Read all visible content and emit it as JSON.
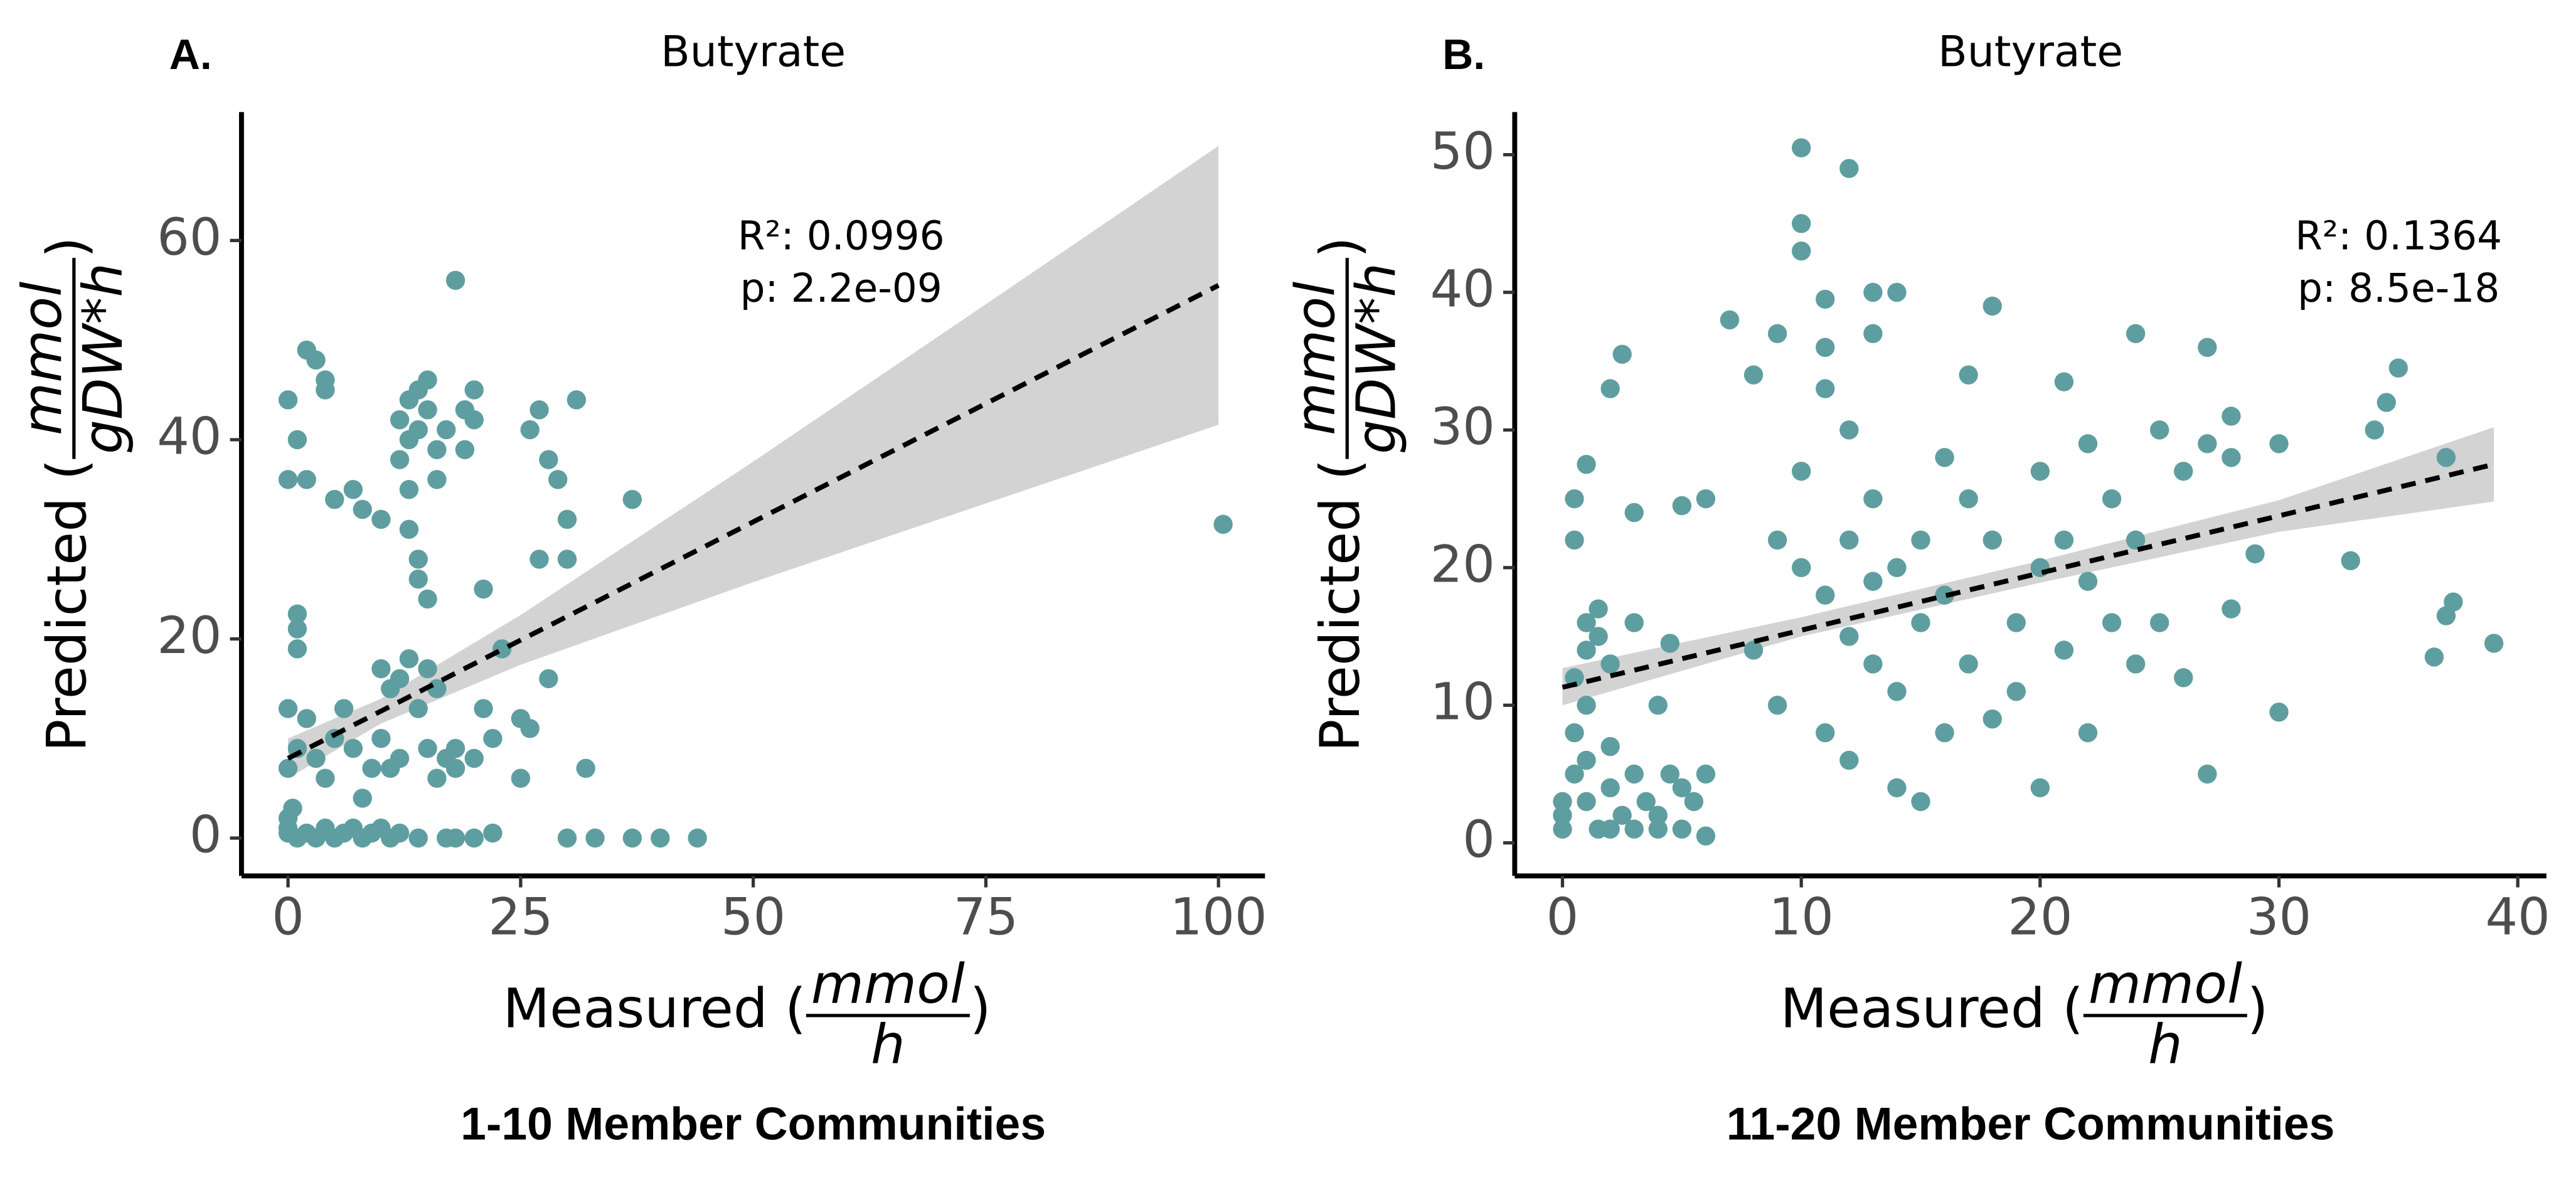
{
  "chart_data": [
    {
      "type": "scatter",
      "panel_label": "A.",
      "title": "Butyrate",
      "subtitle": "1-10 Member Communities",
      "xlabel": {
        "prefix": "Measured (",
        "numerator": "mmol",
        "denominator": "h",
        "suffix": ")"
      },
      "ylabel": {
        "prefix": "Predicted (",
        "numerator": "mmol",
        "denominator": "gDW*h",
        "suffix": ")"
      },
      "annotations": [
        "R²: 0.0996",
        "p: 2.2e-09"
      ],
      "xlim": [
        -5,
        105
      ],
      "ylim": [
        -3.8,
        72.9
      ],
      "xticks": [
        0,
        25,
        50,
        75,
        100
      ],
      "yticks": [
        0,
        20,
        40,
        60
      ],
      "series": [
        {
          "color": "#5f9ea0",
          "x": [
            0,
            0,
            0,
            0.5,
            1,
            2,
            3,
            4,
            5,
            6,
            7,
            8,
            9,
            10,
            11,
            12,
            14,
            17,
            18,
            20,
            22,
            30,
            33,
            37,
            40,
            44,
            0,
            0,
            1,
            1,
            1,
            1,
            2,
            2,
            3,
            4,
            4,
            5,
            7,
            8,
            10,
            0,
            0,
            1,
            2,
            3,
            4,
            5,
            6,
            7,
            8,
            9,
            12,
            12,
            13,
            13,
            14,
            14,
            15,
            15,
            16,
            16,
            17,
            18,
            19,
            19,
            20,
            20,
            13,
            13,
            14,
            14,
            15,
            13,
            12,
            11,
            10,
            15,
            16,
            14,
            15,
            17,
            18,
            20,
            21,
            22,
            21,
            23,
            25,
            26,
            25,
            26,
            27,
            28,
            29,
            27,
            30,
            30,
            31,
            28,
            32,
            37,
            100.5,
            12,
            11,
            10,
            16,
            18
          ],
          "y": [
            0.5,
            1,
            2,
            3,
            0,
            0.5,
            0,
            1,
            0,
            0.5,
            1,
            0,
            0.5,
            1,
            0,
            0.5,
            0,
            0,
            0,
            0,
            0.5,
            0,
            0,
            0,
            0,
            0,
            44,
            36,
            40,
            22.5,
            21,
            19,
            36,
            49,
            48,
            46,
            45,
            34,
            35,
            33,
            32,
            13,
            7,
            9,
            12,
            8,
            6,
            10,
            13,
            9,
            4,
            7,
            38,
            42,
            44,
            40,
            45,
            41,
            46,
            43,
            39,
            36,
            41,
            56,
            43,
            39,
            45,
            42,
            35,
            31,
            28,
            26,
            24,
            18,
            16,
            15,
            17,
            17,
            15,
            13,
            9,
            8,
            9,
            8,
            13,
            10,
            25,
            19,
            12,
            11,
            6,
            41,
            43,
            38,
            36,
            28,
            32,
            28,
            44,
            16,
            7,
            34,
            31.5,
            8,
            7,
            10,
            6,
            7
          ]
        }
      ],
      "fit": {
        "color": "#000000",
        "x": [
          0,
          100
        ],
        "y": [
          8,
          55.5
        ]
      },
      "band": {
        "color": "#d3d3d3",
        "x": [
          0,
          10,
          25,
          50,
          75,
          100
        ],
        "lower": [
          6,
          11.5,
          17.4,
          25.7,
          33.6,
          41.5
        ],
        "upper": [
          10,
          14,
          22.4,
          37.8,
          53.6,
          69.5
        ]
      }
    },
    {
      "type": "scatter",
      "panel_label": "B.",
      "title": "Butyrate",
      "subtitle": "11-20 Member Communities",
      "xlabel": {
        "prefix": "Measured (",
        "numerator": "mmol",
        "denominator": "h",
        "suffix": ")"
      },
      "ylabel": {
        "prefix": "Predicted (",
        "numerator": "mmol",
        "denominator": "gDW*h",
        "suffix": ")"
      },
      "annotations": [
        "R²: 0.1364",
        "p: 8.5e-18"
      ],
      "xlim": [
        -2,
        41.2
      ],
      "ylim": [
        -2.4,
        53.1
      ],
      "xticks": [
        0,
        10,
        20,
        30,
        40
      ],
      "yticks": [
        0,
        10,
        20,
        30,
        40,
        50
      ],
      "series": [
        {
          "color": "#5f9ea0",
          "x": [
            0,
            0,
            0,
            0.5,
            0.5,
            0.5,
            0.5,
            0.5,
            1,
            1,
            1,
            1,
            1,
            1,
            1.5,
            1.5,
            1.5,
            2,
            2,
            2,
            2,
            2,
            2.5,
            2.5,
            3,
            3,
            3,
            3,
            3.5,
            4,
            4,
            4,
            4.5,
            4.5,
            5,
            5,
            5.5,
            6,
            6,
            6,
            5,
            7,
            8,
            8,
            9,
            9,
            9,
            10,
            10,
            10,
            10,
            10,
            11,
            11,
            11,
            11,
            11,
            12,
            12,
            12,
            12,
            12,
            13,
            13,
            13,
            13,
            13,
            14,
            14,
            14,
            14,
            15,
            15,
            15,
            16,
            16,
            16,
            17,
            17,
            17,
            18,
            18,
            18,
            19,
            19,
            20,
            20,
            20,
            21,
            21,
            21,
            22,
            22,
            22,
            23,
            23,
            24,
            24,
            24,
            25,
            25,
            26,
            26,
            27,
            27,
            27,
            28,
            28,
            28,
            29,
            30,
            30,
            33,
            34,
            34.5,
            35,
            36.5,
            37,
            37,
            37.3,
            39
          ],
          "y": [
            1,
            2,
            3,
            5,
            8,
            12,
            22,
            25,
            27.5,
            14,
            16,
            10,
            6,
            3,
            1,
            15,
            17,
            13,
            7,
            4,
            1,
            33,
            35.5,
            2,
            5,
            1,
            16,
            24,
            3,
            2,
            1,
            10,
            14.5,
            5,
            4,
            1,
            3,
            0.5,
            5,
            25,
            24.5,
            38,
            34,
            14,
            22,
            37,
            10,
            50.5,
            45,
            43,
            27,
            20,
            39.5,
            36,
            33,
            18,
            8,
            49,
            30,
            22,
            15,
            6,
            40,
            37,
            25,
            19,
            13,
            40,
            20,
            11,
            4,
            22,
            16,
            3,
            28,
            18,
            8,
            34,
            25,
            13,
            39,
            22,
            9,
            16,
            11,
            27,
            20,
            4,
            33.5,
            22,
            14,
            29,
            19,
            8,
            25,
            16,
            37,
            22,
            13,
            30,
            16,
            27,
            12,
            36,
            29,
            5,
            28,
            17,
            31,
            21,
            29,
            9.5,
            20.5,
            30,
            32,
            34.5,
            13.5,
            16.5,
            28,
            17.5,
            14.5
          ]
        }
      ],
      "fit": {
        "color": "#000000",
        "x": [
          0,
          39
        ],
        "y": [
          11.3,
          27.5
        ]
      },
      "band": {
        "color": "#d3d3d3",
        "x": [
          0,
          10,
          20,
          30,
          39
        ],
        "lower": [
          10,
          15,
          18.9,
          22.6,
          24.8
        ],
        "upper": [
          12.7,
          16.4,
          20.5,
          24.9,
          30.2
        ]
      }
    }
  ]
}
